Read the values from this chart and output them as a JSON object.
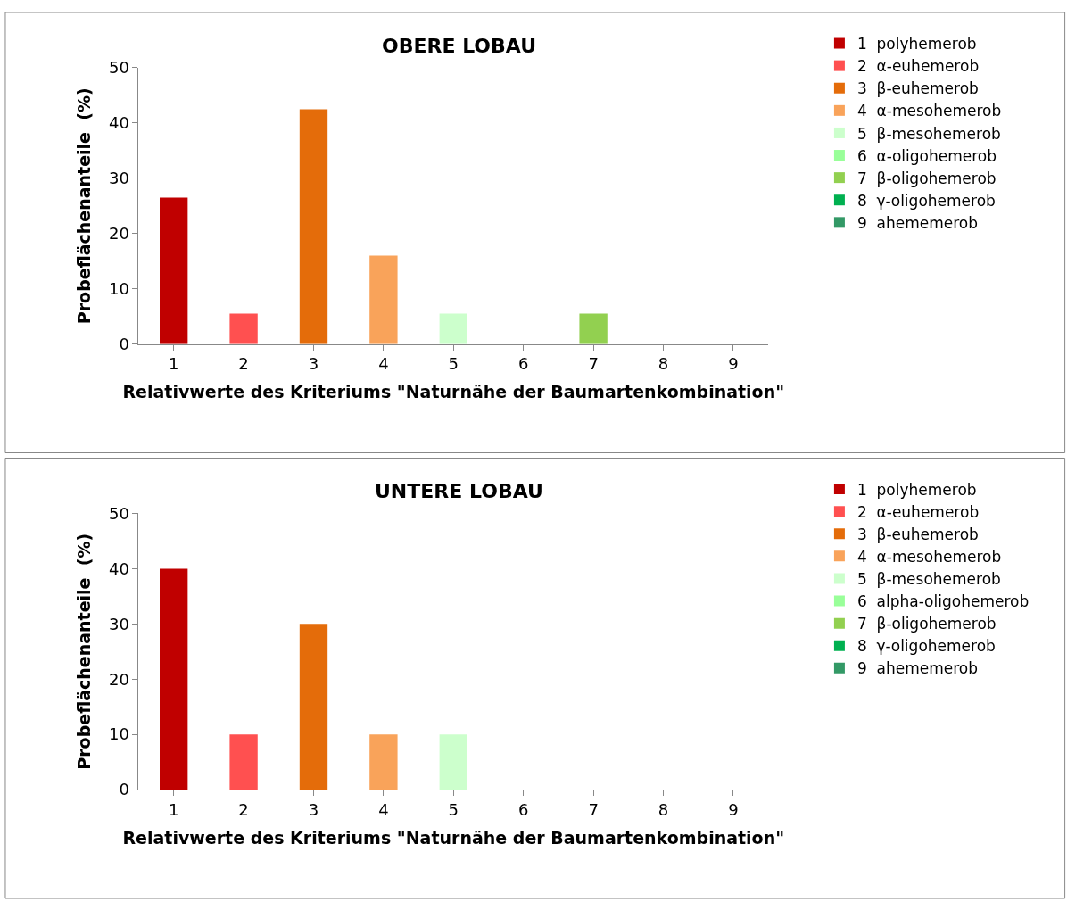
{
  "chart_data": [
    {
      "type": "bar",
      "title": "OBERE LOBAU",
      "xlabel": "Relativwerte des Kriteriums \"Naturnähe der Baumartenkombination\"",
      "ylabel": "Probeflächenanteile  (%)",
      "categories": [
        "1",
        "2",
        "3",
        "4",
        "5",
        "6",
        "7",
        "8",
        "9"
      ],
      "ylim": [
        0,
        50
      ],
      "yticks": [
        0,
        10,
        20,
        30,
        40,
        50
      ],
      "legend": "right",
      "series": [
        {
          "name": "1  polyhemerob",
          "color": "#c00000",
          "values": [
            26.5,
            null,
            null,
            null,
            null,
            null,
            null,
            null,
            null
          ]
        },
        {
          "name": "2  α-euhemerob",
          "color": "#ff5050",
          "values": [
            null,
            5.5,
            null,
            null,
            null,
            null,
            null,
            null,
            null
          ]
        },
        {
          "name": "3  β-euhemerob",
          "color": "#e46c0a",
          "values": [
            null,
            null,
            42.5,
            null,
            null,
            null,
            null,
            null,
            null
          ]
        },
        {
          "name": "4  α-mesohemerob",
          "color": "#f9a35a",
          "values": [
            null,
            null,
            null,
            16,
            null,
            null,
            null,
            null,
            null
          ]
        },
        {
          "name": "5  β-mesohemerob",
          "color": "#ccffcc",
          "values": [
            null,
            null,
            null,
            null,
            5.5,
            null,
            null,
            null,
            null
          ]
        },
        {
          "name": "6  α-oligohemerob",
          "color": "#99ff99",
          "values": [
            null,
            null,
            null,
            null,
            null,
            0,
            null,
            null,
            null
          ]
        },
        {
          "name": "7  β-oligohemerob",
          "color": "#92d050",
          "values": [
            null,
            null,
            null,
            null,
            null,
            null,
            5.5,
            null,
            null
          ]
        },
        {
          "name": "8  γ-oligohemerob",
          "color": "#00b050",
          "values": [
            null,
            null,
            null,
            null,
            null,
            null,
            null,
            0,
            null
          ]
        },
        {
          "name": "9  ahememerob",
          "color": "#339966",
          "values": [
            null,
            null,
            null,
            null,
            null,
            null,
            null,
            null,
            0
          ]
        }
      ]
    },
    {
      "type": "bar",
      "title": "UNTERE LOBAU",
      "xlabel": "Relativwerte des Kriteriums \"Naturnähe der Baumartenkombination\"",
      "ylabel": "Probeflächenanteile  (%)",
      "categories": [
        "1",
        "2",
        "3",
        "4",
        "5",
        "6",
        "7",
        "8",
        "9"
      ],
      "ylim": [
        0,
        50
      ],
      "yticks": [
        0,
        10,
        20,
        30,
        40,
        50
      ],
      "legend": "right",
      "series": [
        {
          "name": "1  polyhemerob",
          "color": "#c00000",
          "values": [
            40,
            null,
            null,
            null,
            null,
            null,
            null,
            null,
            null
          ]
        },
        {
          "name": "2  α-euhemerob",
          "color": "#ff5050",
          "values": [
            null,
            10,
            null,
            null,
            null,
            null,
            null,
            null,
            null
          ]
        },
        {
          "name": "3  β-euhemerob",
          "color": "#e46c0a",
          "values": [
            null,
            null,
            30,
            null,
            null,
            null,
            null,
            null,
            null
          ]
        },
        {
          "name": "4  α-mesohemerob",
          "color": "#f9a35a",
          "values": [
            null,
            null,
            null,
            10,
            null,
            null,
            null,
            null,
            null
          ]
        },
        {
          "name": "5  β-mesohemerob",
          "color": "#ccffcc",
          "values": [
            null,
            null,
            null,
            null,
            10,
            null,
            null,
            null,
            null
          ]
        },
        {
          "name": "6  alpha-oligohemerob",
          "color": "#99ff99",
          "values": [
            null,
            null,
            null,
            null,
            null,
            0,
            null,
            null,
            null
          ]
        },
        {
          "name": "7  β-oligohemerob",
          "color": "#92d050",
          "values": [
            null,
            null,
            null,
            null,
            null,
            null,
            0,
            null,
            null
          ]
        },
        {
          "name": "8  γ-oligohemerob",
          "color": "#00b050",
          "values": [
            null,
            null,
            null,
            null,
            null,
            null,
            null,
            0,
            null
          ]
        },
        {
          "name": "9  ahememerob",
          "color": "#339966",
          "values": [
            null,
            null,
            null,
            null,
            null,
            null,
            null,
            null,
            0
          ]
        }
      ]
    }
  ]
}
